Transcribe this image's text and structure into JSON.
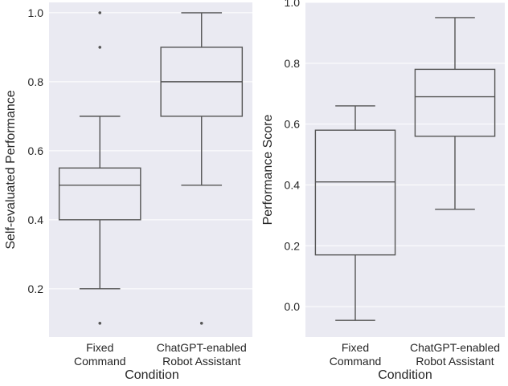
{
  "chart_data": [
    {
      "type": "box",
      "xlabel": "Condition",
      "ylabel": "Self-evaluated Performance",
      "ylim": [
        0.06,
        1.03
      ],
      "yticks": [
        0.2,
        0.4,
        0.6,
        0.8,
        1.0
      ],
      "ytick_labels": [
        "0.2",
        "0.4",
        "0.6",
        "0.8",
        "1.0"
      ],
      "grid": true,
      "categories": [
        {
          "label_line1": "Fixed",
          "label_line2": "Command",
          "color": "#cd655c",
          "whisker_low": 0.2,
          "q1": 0.4,
          "median": 0.5,
          "q3": 0.55,
          "whisker_high": 0.7,
          "outliers": [
            0.1,
            0.9,
            1.0
          ]
        },
        {
          "label_line1": "ChatGPT-enabled",
          "label_line2": "Robot Assistant",
          "color": "#5bc7cf",
          "whisker_low": 0.5,
          "q1": 0.7,
          "median": 0.8,
          "q3": 0.9,
          "whisker_high": 1.0,
          "outliers": [
            0.1
          ]
        }
      ]
    },
    {
      "type": "box",
      "xlabel": "Condition",
      "ylabel": "Performance Score",
      "ylim": [
        -0.1,
        1.0
      ],
      "yticks": [
        0.0,
        0.2,
        0.4,
        0.6,
        0.8,
        1.0
      ],
      "ytick_labels": [
        "0.0",
        "0.2",
        "0.4",
        "0.6",
        "0.8",
        "1.0"
      ],
      "grid": true,
      "categories": [
        {
          "label_line1": "Fixed",
          "label_line2": "Command",
          "color": "#cd655c",
          "whisker_low": -0.045,
          "q1": 0.17,
          "median": 0.41,
          "q3": 0.58,
          "whisker_high": 0.66,
          "outliers": []
        },
        {
          "label_line1": "ChatGPT-enabled",
          "label_line2": "Robot Assistant",
          "color": "#5bc7cf",
          "whisker_low": 0.32,
          "q1": 0.56,
          "median": 0.69,
          "q3": 0.78,
          "whisker_high": 0.95,
          "outliers": []
        }
      ]
    }
  ]
}
